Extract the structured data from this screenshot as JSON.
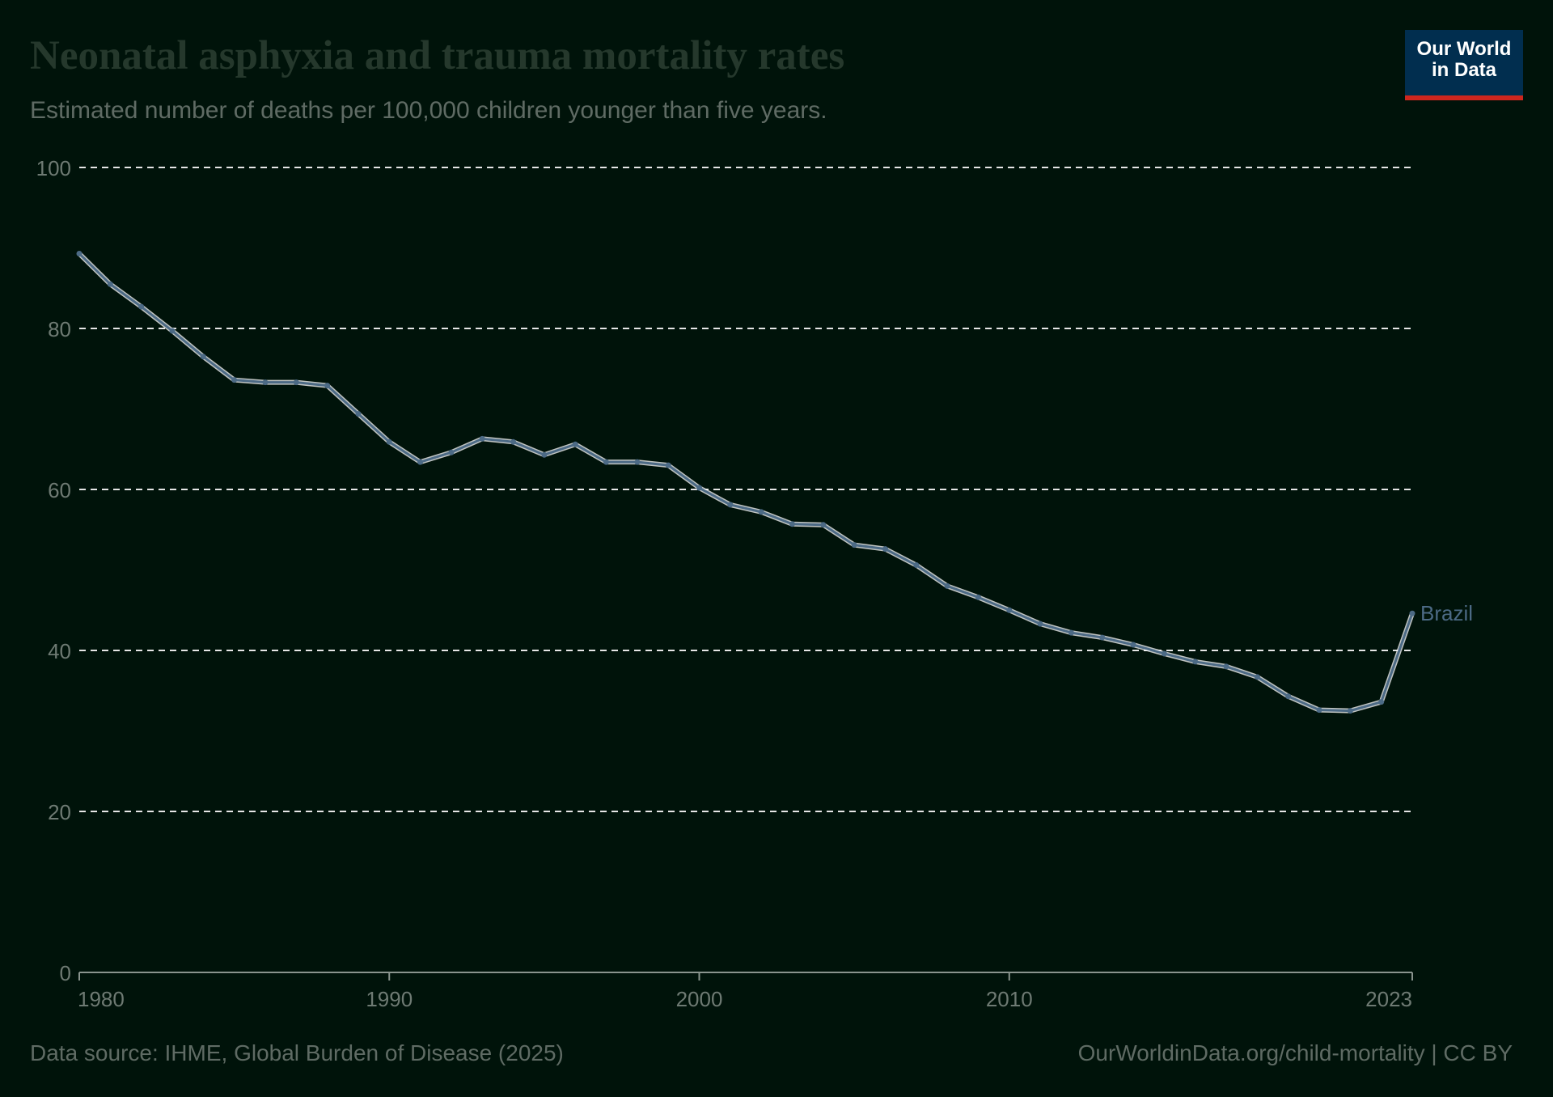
{
  "header": {
    "title": "Neonatal asphyxia and trauma mortality rates",
    "subtitle": "Estimated number of deaths per 100,000 children younger than five years.",
    "logo_line1": "Our World",
    "logo_line2": "in Data"
  },
  "footer": {
    "source": "Data source: IHME, Global Burden of Disease (2025)",
    "link": "OurWorldinData.org/child-mortality | CC BY"
  },
  "colors": {
    "background": "#00130a",
    "series": "#4c6a85",
    "grid": "#e6e6e6",
    "tick_text": "#6e7a73",
    "brand": "#012e4f",
    "brand_accent": "#ce261e"
  },
  "chart_data": {
    "type": "line",
    "title": "Neonatal asphyxia and trauma mortality rates",
    "subtitle": "Estimated number of deaths per 100,000 children younger than five years.",
    "xlabel": "",
    "ylabel": "",
    "xlim": [
      1980,
      2023
    ],
    "ylim": [
      0,
      100
    ],
    "x_ticks": [
      "1980",
      "1990",
      "2000",
      "2010",
      "2023"
    ],
    "y_ticks": [
      "0",
      "20",
      "40",
      "60",
      "80",
      "100"
    ],
    "grid": "horizontal dashed",
    "legend": "end-of-line label",
    "x": [
      1980,
      1981,
      1982,
      1983,
      1984,
      1985,
      1986,
      1987,
      1988,
      1989,
      1990,
      1991,
      1992,
      1993,
      1994,
      1995,
      1996,
      1997,
      1998,
      1999,
      2000,
      2001,
      2002,
      2003,
      2004,
      2005,
      2006,
      2007,
      2008,
      2009,
      2010,
      2011,
      2012,
      2013,
      2014,
      2015,
      2016,
      2017,
      2018,
      2019,
      2020,
      2021,
      2022,
      2023
    ],
    "series": [
      {
        "name": "Brazil",
        "values": [
          89.3,
          85.5,
          82.7,
          79.7,
          76.5,
          73.6,
          73.3,
          73.3,
          72.9,
          69.4,
          65.9,
          63.4,
          64.6,
          66.3,
          65.9,
          64.3,
          65.6,
          63.4,
          63.4,
          63.0,
          60.2,
          58.1,
          57.2,
          55.7,
          55.6,
          53.1,
          52.6,
          50.6,
          48.0,
          46.6,
          45.0,
          43.3,
          42.2,
          41.6,
          40.7,
          39.6,
          38.6,
          38.0,
          36.7,
          34.3,
          32.6,
          32.5,
          33.6,
          44.6
        ]
      }
    ]
  }
}
